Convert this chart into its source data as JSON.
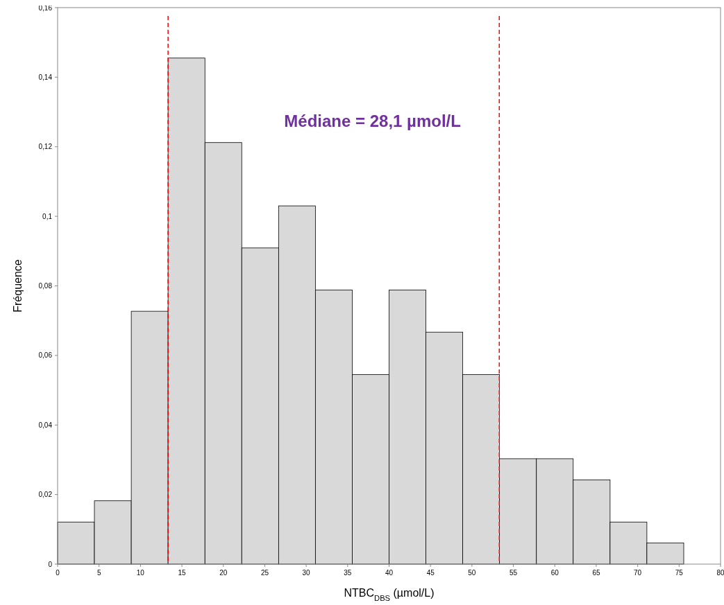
{
  "chart_data": {
    "type": "histogram",
    "xlabel": "NTBC$_{DBS}$ (µmol/L)",
    "ylabel": "Fréquence",
    "annotations": [
      "Médiane = 28,1 µmol/L"
    ],
    "bins": [
      0,
      4.44,
      8.89,
      13.33,
      17.78,
      22.22,
      26.67,
      31.11,
      35.56,
      40,
      44.44,
      48.89,
      53.33,
      57.78,
      62.22,
      66.67,
      71.11,
      75.56,
      80
    ],
    "values": [
      0.0121,
      0.0182,
      0.0727,
      0.1455,
      0.1212,
      0.0909,
      0.103,
      0.0788,
      0.0545,
      0.0788,
      0.0667,
      0.0545,
      0.0303,
      0.0303,
      0.0242,
      0.0121,
      0.0061,
      0
    ],
    "color": "#d9d9d9",
    "xlim": [
      0,
      80
    ],
    "xticks": [
      0,
      5,
      10,
      15,
      20,
      25,
      30,
      35,
      40,
      45,
      50,
      55,
      60,
      65,
      70,
      75,
      80
    ],
    "ylim": [
      0,
      0.16
    ],
    "yticks": [
      0,
      {
        "value": 0.02,
        "label": "0,02"
      },
      {
        "value": 0.04,
        "label": "0,04"
      },
      {
        "value": 0.06,
        "label": "0,06"
      },
      {
        "value": 0.08,
        "label": "0,08"
      },
      {
        "value": 0.1,
        "label": "0,1"
      },
      {
        "value": 0.12,
        "label": "0,12"
      },
      {
        "value": 0.14,
        "label": "0,14"
      },
      {
        "value": 0.16,
        "label": "0,16"
      }
    ],
    "ref_lines": [
      {
        "axis": "x",
        "value": 13.33,
        "color": "#ff0000",
        "line_style": "dashed"
      },
      {
        "axis": "x",
        "value": 53.3,
        "color": "#ff0000",
        "line_style": "dashed"
      }
    ],
    "grid": false
  }
}
